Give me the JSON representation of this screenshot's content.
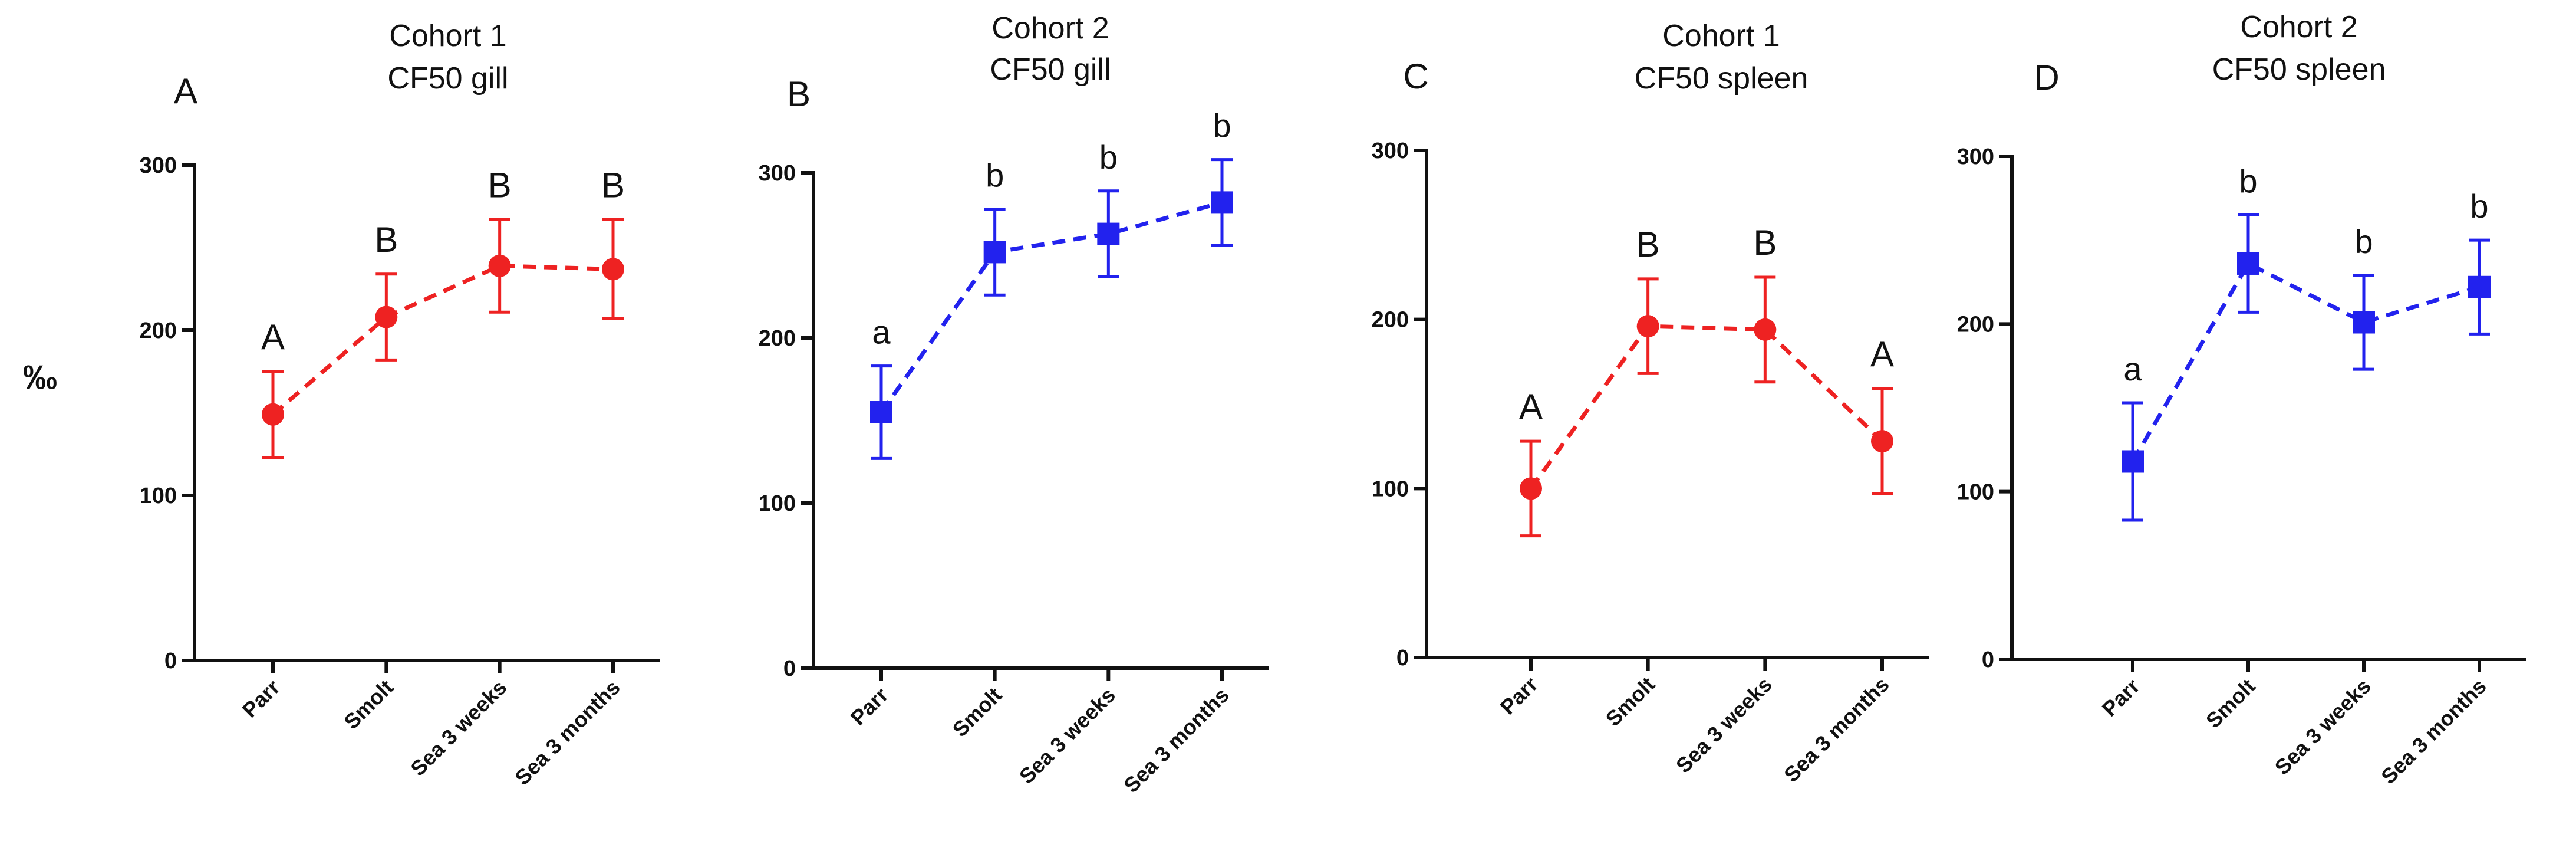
{
  "figure": {
    "ylabel": "‰"
  },
  "chart_data": [
    {
      "type": "line",
      "panel_letter": "A",
      "title_line1": "Cohort 1",
      "title_line2": "CF50 gill",
      "categories": [
        "Parr",
        "Smolt",
        "Sea 3 weeks",
        "Sea 3 months"
      ],
      "values": [
        149,
        208,
        239,
        237
      ],
      "errors": [
        26,
        26,
        28,
        30
      ],
      "sig_labels": [
        "A",
        "B",
        "B",
        "B"
      ],
      "marker": "circle",
      "color": "#ee2222",
      "ylim": [
        0,
        300
      ],
      "yticks": [
        "0",
        "100",
        "200",
        "300"
      ],
      "ylabel": "‰"
    },
    {
      "type": "line",
      "panel_letter": "B",
      "title_line1": "Cohort 2",
      "title_line2": "CF50 gill",
      "categories": [
        "Parr",
        "Smolt",
        "Sea 3 weeks",
        "Sea 3 months"
      ],
      "values": [
        155,
        252,
        263,
        282
      ],
      "errors": [
        28,
        26,
        26,
        26
      ],
      "sig_labels": [
        "a",
        "b",
        "b",
        "b"
      ],
      "marker": "square",
      "color": "#2222ee",
      "ylim": [
        0,
        300
      ],
      "yticks": [
        "0",
        "100",
        "200",
        "300"
      ],
      "ylabel": ""
    },
    {
      "type": "line",
      "panel_letter": "C",
      "title_line1": "Cohort 1",
      "title_line2": "CF50 spleen",
      "categories": [
        "Parr",
        "Smolt",
        "Sea 3 weeks",
        "Sea 3 months"
      ],
      "values": [
        100,
        196,
        194,
        128
      ],
      "errors": [
        28,
        28,
        31,
        31
      ],
      "sig_labels": [
        "A",
        "B",
        "B",
        "A"
      ],
      "marker": "circle",
      "color": "#ee2222",
      "ylim": [
        0,
        300
      ],
      "yticks": [
        "0",
        "100",
        "200",
        "300"
      ],
      "ylabel": ""
    },
    {
      "type": "line",
      "panel_letter": "D",
      "title_line1": "Cohort 2",
      "title_line2": "CF50 spleen",
      "categories": [
        "Parr",
        "Smolt",
        "Sea 3 weeks",
        "Sea 3 months"
      ],
      "values": [
        118,
        236,
        201,
        222
      ],
      "errors": [
        35,
        29,
        28,
        28
      ],
      "sig_labels": [
        "a",
        "b",
        "b",
        "b"
      ],
      "marker": "square",
      "color": "#2222ee",
      "ylim": [
        0,
        300
      ],
      "yticks": [
        "0",
        "100",
        "200",
        "300"
      ],
      "ylabel": ""
    }
  ]
}
